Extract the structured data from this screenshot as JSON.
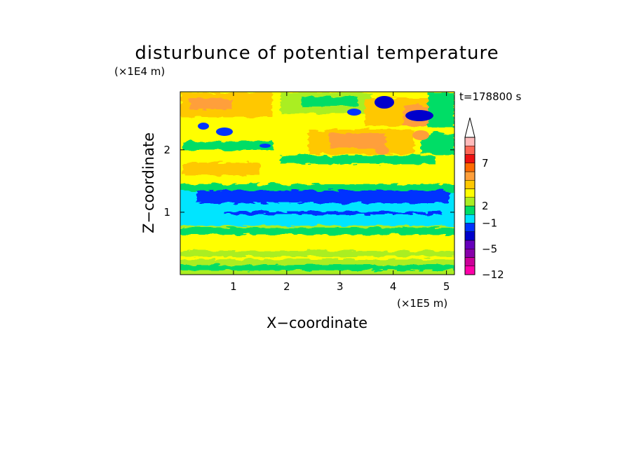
{
  "chart_data": {
    "type": "heatmap",
    "title": "disturbunce of potential temperature",
    "time_label": "t=178800 s",
    "x_axis": {
      "label": "X−coordinate",
      "unit": "(×1E5 m)",
      "range": [
        0,
        5.15
      ],
      "ticks": [
        1,
        2,
        3,
        4,
        5
      ],
      "tick_labels": [
        "1",
        "2",
        "3",
        "4",
        "5"
      ]
    },
    "y_axis": {
      "label": "Z−coordinate",
      "unit": "(×1E4 m)",
      "range": [
        0,
        2.93
      ],
      "ticks": [
        1,
        2
      ],
      "tick_labels": [
        "1",
        "2"
      ]
    },
    "colorbar": {
      "tick_labels": [
        "7",
        "2",
        "−1",
        "−5",
        "−12"
      ],
      "colors": [
        "#ff00aa",
        "#cc0099",
        "#8800aa",
        "#6600bb",
        "#0000cc",
        "#0033ff",
        "#00e5ff",
        "#00dd66",
        "#aaee22",
        "#ffff00",
        "#ffc800",
        "#ff9f3a",
        "#ff6a00",
        "#ee1111",
        "#ff6655",
        "#ffbbbb"
      ],
      "extend_top_color": "#ffffff"
    },
    "layers": [
      {
        "z_range": [
          0,
          0.3
        ],
        "description_value": 1,
        "color": "#ffff00"
      },
      {
        "z_range": [
          0.3,
          0.7
        ],
        "description_value": 1,
        "color": "#ffff00"
      },
      {
        "z_range": [
          0.7,
          0.85
        ],
        "description_value": 0,
        "color": "#00dd66"
      },
      {
        "z_range": [
          0.85,
          1.2
        ],
        "description_value": -1,
        "color": "#00e5ff"
      },
      {
        "z_range": [
          1.2,
          1.35
        ],
        "description_value": -4,
        "color": "#0033ff"
      },
      {
        "z_range": [
          1.35,
          1.5
        ],
        "description_value": -1,
        "color": "#00e5ff"
      },
      {
        "z_range": [
          1.5,
          2.0
        ],
        "description_value": 2,
        "color": "#ffc800"
      },
      {
        "z_range": [
          2.0,
          2.93
        ],
        "description_value": 2,
        "color": "#ffc800"
      }
    ]
  }
}
